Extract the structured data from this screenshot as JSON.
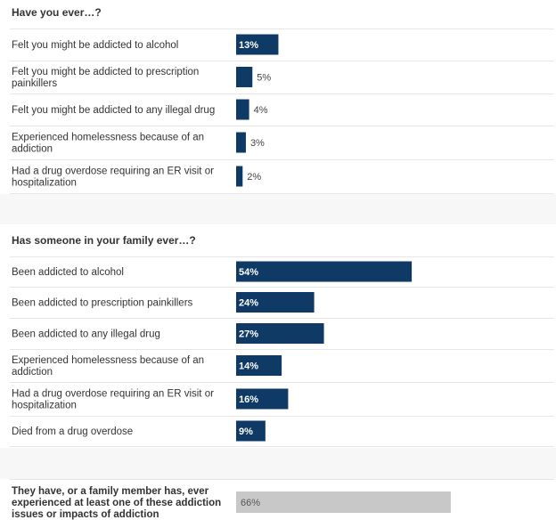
{
  "chart_data": [
    {
      "type": "bar",
      "title": "Have you ever…?",
      "categories": [
        "Felt you might be addicted to alcohol",
        "Felt you might be addicted to prescription painkillers",
        "Felt you might be addicted to any illegal drug",
        "Experienced homelessness because of an addiction",
        "Had a drug overdose requiring an ER visit or hospitalization"
      ],
      "category_lines": [
        [
          "Felt you might be addicted to alcohol"
        ],
        [
          "Felt you might be addicted to prescription",
          "painkillers"
        ],
        [
          "Felt you might be addicted to any illegal drug"
        ],
        [
          "Experienced homelessness because of an",
          "addiction"
        ],
        [
          "Had a drug overdose requiring an ER visit or",
          "hospitalization"
        ]
      ],
      "values": [
        13,
        5,
        4,
        3,
        2
      ],
      "value_labels": [
        "13%",
        "5%",
        "4%",
        "3%",
        "2%"
      ],
      "xlim": [
        0,
        100
      ],
      "bar_color": "#0e3a65"
    },
    {
      "type": "bar",
      "title": "Has someone in your family ever…?",
      "categories": [
        "Been addicted to alcohol",
        "Been addicted to prescription painkillers",
        "Been addicted to any illegal drug",
        "Experienced homelessness because of an addiction",
        "Had a drug overdose requiring an ER visit or hospitalization",
        "Died from a drug overdose"
      ],
      "category_lines": [
        [
          "Been addicted to alcohol"
        ],
        [
          "Been addicted to prescription painkillers"
        ],
        [
          "Been addicted to any illegal drug"
        ],
        [
          "Experienced homelessness because of an",
          "addiction"
        ],
        [
          "Had a drug overdose requiring an ER visit or",
          "hospitalization"
        ],
        [
          "Died from a drug overdose"
        ]
      ],
      "values": [
        54,
        24,
        27,
        14,
        16,
        9
      ],
      "value_labels": [
        "54%",
        "24%",
        "27%",
        "14%",
        "16%",
        "9%"
      ],
      "xlim": [
        0,
        100
      ],
      "bar_color": "#0e3a65"
    },
    {
      "type": "bar",
      "categories": [
        "They have, or a family member has, ever experienced at least one of these addiction issues or impacts of addiction"
      ],
      "category_lines": [
        [
          "They have, or a family member has, ever",
          "experienced at least one of these addiction",
          "issues or impacts of addiction"
        ]
      ],
      "values": [
        66
      ],
      "value_labels": [
        "66%"
      ],
      "xlim": [
        0,
        100
      ],
      "bar_color": "#c8c8c8"
    }
  ]
}
